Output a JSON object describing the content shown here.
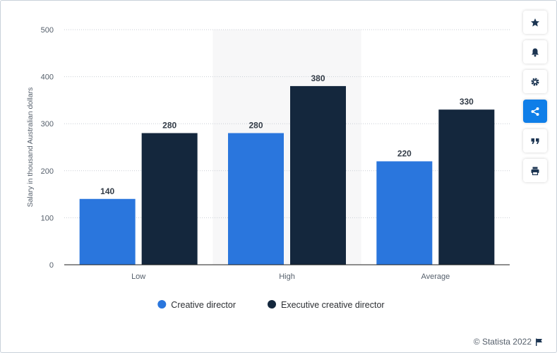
{
  "toolbar": {
    "buttons": [
      {
        "icon": "star-icon",
        "active": false
      },
      {
        "icon": "bell-icon",
        "active": false
      },
      {
        "icon": "gear-icon",
        "active": false
      },
      {
        "icon": "share-icon",
        "active": true
      },
      {
        "icon": "quote-icon",
        "active": false
      },
      {
        "icon": "print-icon",
        "active": false
      }
    ]
  },
  "footer": {
    "credit": "© Statista 2022",
    "icon": "flag-icon"
  },
  "colors": {
    "creative_director": "#2a76dd",
    "executive_creative_director": "#14273d",
    "highlight_band": "#f7f7f8",
    "accent": "#0f7ee8"
  },
  "chart_data": {
    "type": "bar",
    "title": "",
    "xlabel": "",
    "ylabel": "Salary in thousand Australian dollars",
    "categories": [
      "Low",
      "High",
      "Average"
    ],
    "series": [
      {
        "name": "Creative director",
        "values": [
          140,
          280,
          220
        ]
      },
      {
        "name": "Executive creative director",
        "values": [
          280,
          380,
          330
        ]
      }
    ],
    "ylim": [
      0,
      500
    ],
    "yticks": [
      0,
      100,
      200,
      300,
      400,
      500
    ],
    "highlighted_category": "High",
    "grid": true,
    "legend_position": "bottom"
  }
}
